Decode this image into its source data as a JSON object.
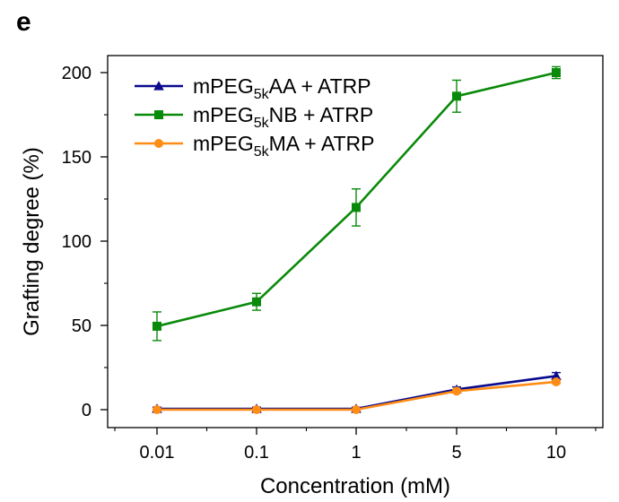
{
  "panel_label": "e",
  "chart_data": {
    "type": "line",
    "xlabel": "Concentration (mM)",
    "ylabel": "Grafting degree (%)",
    "categories": [
      "0.01",
      "0.1",
      "1",
      "5",
      "10"
    ],
    "ylim": [
      -10,
      210
    ],
    "yticks": [
      0,
      50,
      100,
      150,
      200
    ],
    "legend_position": "top-left",
    "series": [
      {
        "name_base": "mPEG",
        "name_sub": "5k",
        "name_rest": "AA + ATRP",
        "color": "#0a0a8c",
        "marker": "triangle",
        "values": [
          0.5,
          0.5,
          0.5,
          12,
          20
        ],
        "errors": [
          1,
          1,
          1,
          1.5,
          2
        ]
      },
      {
        "name_base": "mPEG",
        "name_sub": "5k",
        "name_rest": "NB + ATRP",
        "color": "#0a8a0a",
        "marker": "square",
        "values": [
          49.5,
          64,
          120,
          186,
          200
        ],
        "errors": [
          8.5,
          5,
          11,
          9.5,
          3.5
        ]
      },
      {
        "name_base": "mPEG",
        "name_sub": "5k",
        "name_rest": "MA + ATRP",
        "color": "#ff8c14",
        "marker": "circle",
        "values": [
          0,
          0,
          0,
          11,
          16.5
        ],
        "errors": [
          0,
          0,
          0,
          1,
          1
        ]
      }
    ]
  }
}
